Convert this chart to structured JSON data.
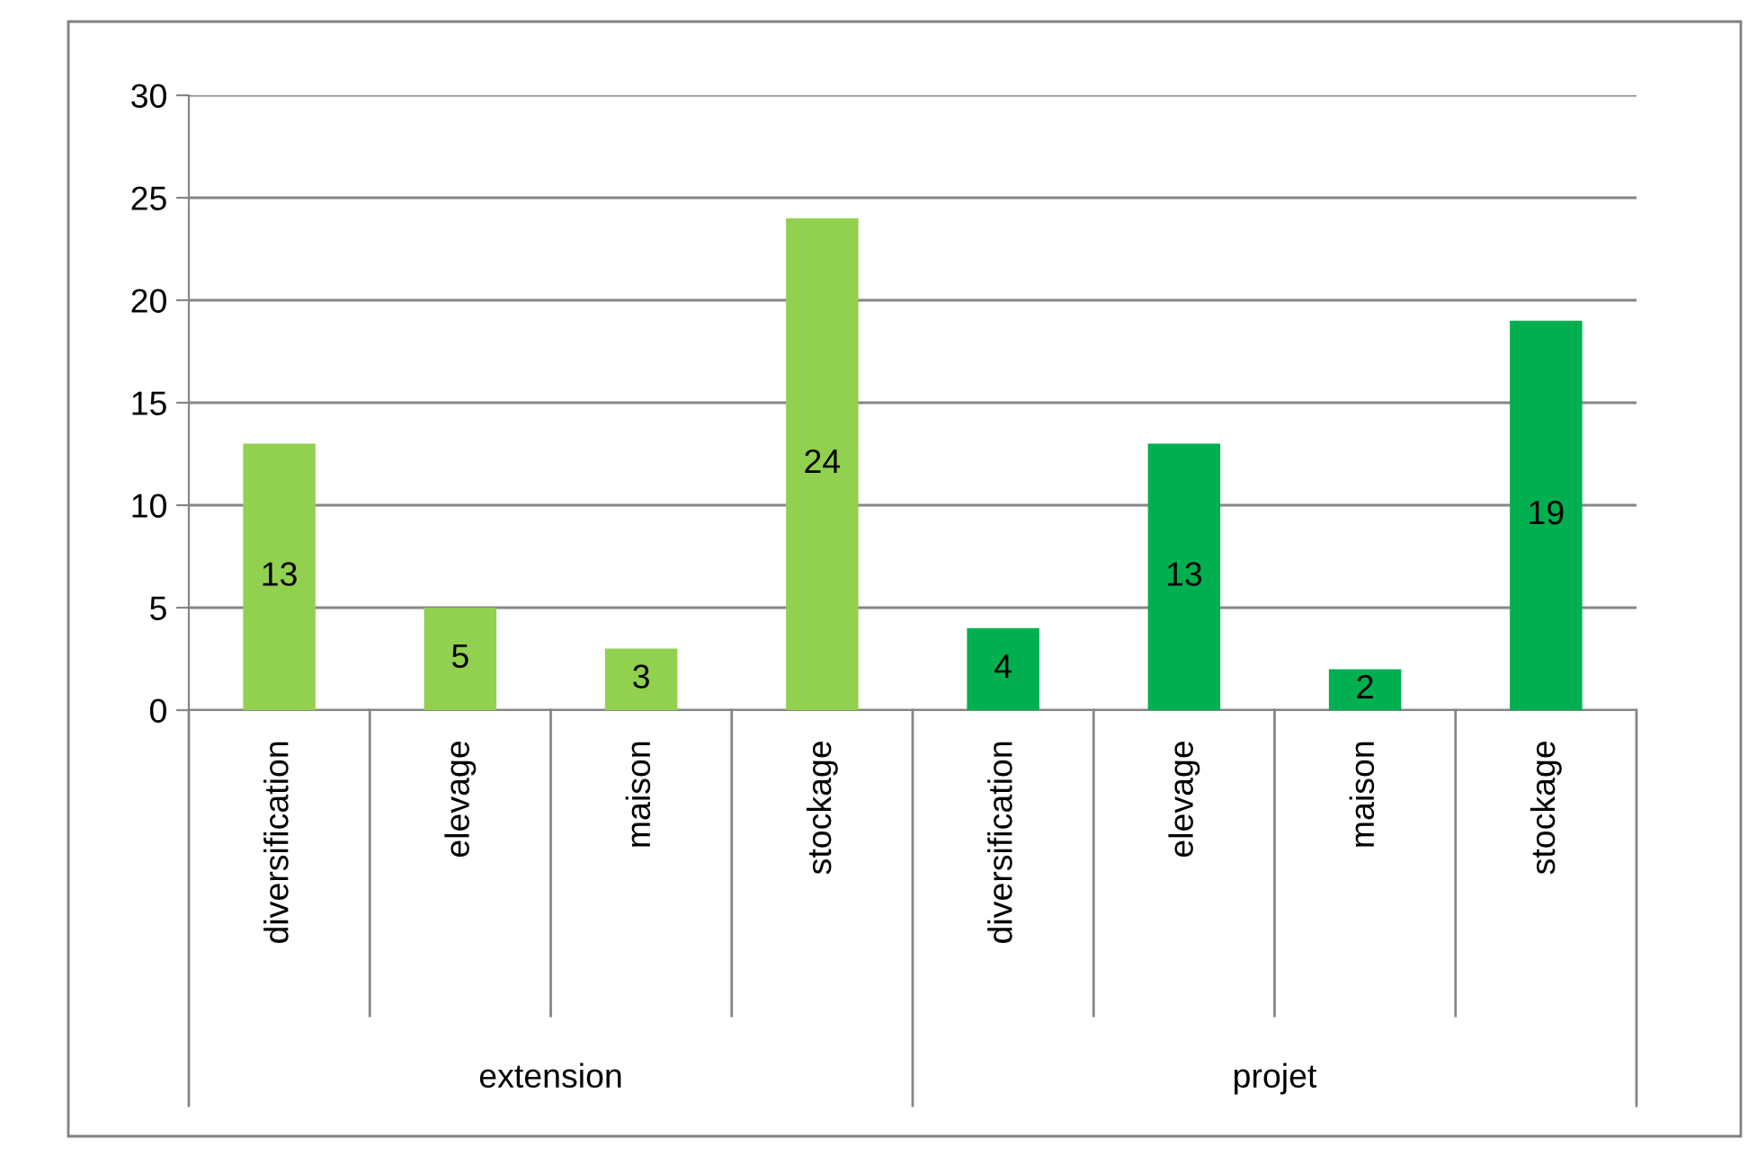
{
  "chart_data": {
    "type": "bar",
    "categories": [
      "diversification",
      "elevage",
      "maison",
      "stockage",
      "diversification",
      "elevage",
      "maison",
      "stockage"
    ],
    "values": [
      13,
      5,
      3,
      24,
      4,
      13,
      2,
      19
    ],
    "colors": [
      "#92d050",
      "#92d050",
      "#92d050",
      "#92d050",
      "#00b050",
      "#00b050",
      "#00b050",
      "#00b050"
    ],
    "annotations": [
      "extension",
      "projet"
    ],
    "ylim": [
      0,
      30
    ],
    "yticks": [
      0,
      5,
      10,
      15,
      20,
      25,
      30
    ],
    "grid": "y",
    "legend": false,
    "data_labels": true
  }
}
